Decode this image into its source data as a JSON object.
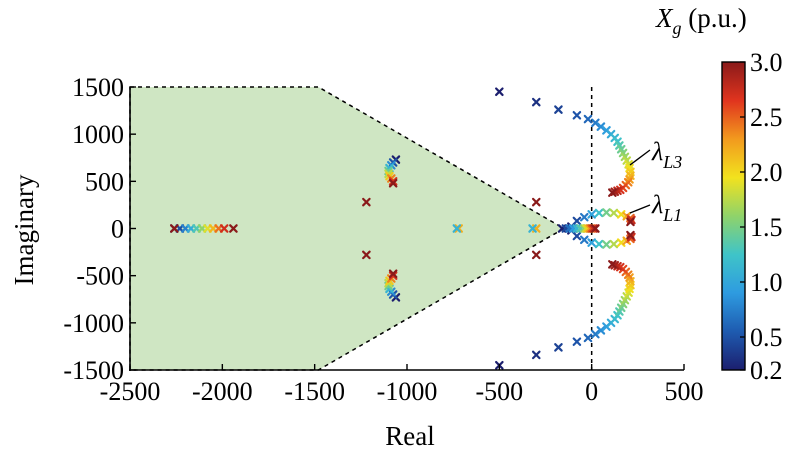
{
  "chart_data": {
    "type": "scatter",
    "xlabel": "Real",
    "ylabel": "Imaginary",
    "xlim": [
      -2500,
      500
    ],
    "ylim": [
      -1500,
      1500
    ],
    "x_ticks": [
      "-2500",
      "-2000",
      "-1500",
      "-1000",
      "-500",
      "0",
      "500"
    ],
    "y_ticks": [
      "1500",
      "1000",
      "500",
      "0",
      "-500",
      "-1000",
      "-1500"
    ],
    "grid": false,
    "marker": "x",
    "color_variable": "X_g",
    "colorbar": {
      "title_symbol": "X",
      "title_subscript": "g",
      "title_unit": " (p.u.)",
      "range": [
        0.2,
        3.0
      ],
      "ticks": [
        "3.0",
        "2.5",
        "2.0",
        "1.5",
        "1.0",
        "0.5",
        "0.2"
      ],
      "colormap": [
        "#1c1f6e",
        "#1e5bb0",
        "#2e9be0",
        "#3fc4c8",
        "#8fd36a",
        "#f2e21e",
        "#f29a1e",
        "#e0341e",
        "#8a1a1a"
      ]
    },
    "shaded_region": {
      "fill": "#cfe6c3",
      "boundary": "dashed",
      "vertices": [
        [
          -2500,
          1500
        ],
        [
          -1480,
          1500
        ],
        [
          -150,
          0
        ],
        [
          -1480,
          -1500
        ],
        [
          -2500,
          -1500
        ]
      ]
    },
    "vertical_reference_line": {
      "x": 0,
      "style": "dashed"
    },
    "annotations": [
      {
        "symbol": "λ",
        "subscript": "L3"
      },
      {
        "symbol": "λ",
        "subscript": "L1"
      }
    ],
    "series": [
      {
        "kind": "path",
        "xg_range": [
          0.2,
          3.0
        ],
        "points": [
          [
            -2260,
            0
          ],
          [
            -2230,
            0
          ],
          [
            -2200,
            0
          ],
          [
            -2170,
            0
          ],
          [
            -2140,
            0
          ],
          [
            -2110,
            0
          ],
          [
            -2080,
            0
          ],
          [
            -2050,
            0
          ],
          [
            -2020,
            0
          ],
          [
            -1990,
            0
          ],
          [
            -1940,
            0
          ]
        ]
      },
      {
        "kind": "path",
        "xg_range": [
          0.2,
          3.0
        ],
        "points": [
          [
            -1060,
            730
          ],
          [
            -1075,
            700
          ],
          [
            -1085,
            670
          ],
          [
            -1095,
            640
          ],
          [
            -1100,
            610
          ],
          [
            -1100,
            580
          ],
          [
            -1095,
            555
          ],
          [
            -1085,
            530
          ],
          [
            -1075,
            500
          ],
          [
            -1075,
            480
          ]
        ]
      },
      {
        "kind": "path",
        "xg_range": [
          0.2,
          3.0
        ],
        "points": [
          [
            -1060,
            -730
          ],
          [
            -1075,
            -700
          ],
          [
            -1085,
            -670
          ],
          [
            -1095,
            -640
          ],
          [
            -1100,
            -610
          ],
          [
            -1100,
            -580
          ],
          [
            -1095,
            -555
          ],
          [
            -1085,
            -530
          ],
          [
            -1075,
            -500
          ],
          [
            -1075,
            -480
          ]
        ]
      },
      {
        "kind": "points",
        "xg": 3.0,
        "points": [
          [
            -1220,
            280
          ],
          [
            -1220,
            -280
          ],
          [
            -300,
            280
          ],
          [
            -300,
            -280
          ],
          [
            -2260,
            0
          ]
        ]
      },
      {
        "kind": "points",
        "xg": 2.2,
        "points": [
          [
            -720,
            0
          ],
          [
            -300,
            0
          ],
          [
            -100,
            0
          ]
        ]
      },
      {
        "kind": "points",
        "xg": 1.1,
        "points": [
          [
            -730,
            0
          ],
          [
            -320,
            0
          ],
          [
            -110,
            0
          ]
        ]
      },
      {
        "kind": "path",
        "name": "λL3",
        "xg_range": [
          0.2,
          3.0
        ],
        "points": [
          [
            -500,
            1450
          ],
          [
            -300,
            1340
          ],
          [
            -180,
            1260
          ],
          [
            -80,
            1200
          ],
          [
            -20,
            1160
          ],
          [
            20,
            1120
          ],
          [
            50,
            1080
          ],
          [
            80,
            1040
          ],
          [
            105,
            1000
          ],
          [
            125,
            960
          ],
          [
            140,
            920
          ],
          [
            150,
            880
          ],
          [
            160,
            840
          ],
          [
            170,
            800
          ],
          [
            180,
            760
          ],
          [
            190,
            720
          ],
          [
            200,
            680
          ],
          [
            205,
            640
          ],
          [
            210,
            600
          ],
          [
            210,
            560
          ],
          [
            205,
            520
          ],
          [
            198,
            490
          ],
          [
            185,
            460
          ],
          [
            170,
            430
          ],
          [
            155,
            410
          ],
          [
            140,
            400
          ],
          [
            125,
            390
          ],
          [
            112,
            380
          ]
        ]
      },
      {
        "kind": "path",
        "xg_range": [
          0.2,
          3.0
        ],
        "points": [
          [
            -500,
            -1450
          ],
          [
            -300,
            -1340
          ],
          [
            -180,
            -1260
          ],
          [
            -80,
            -1200
          ],
          [
            -20,
            -1160
          ],
          [
            20,
            -1120
          ],
          [
            50,
            -1080
          ],
          [
            80,
            -1040
          ],
          [
            105,
            -1000
          ],
          [
            125,
            -960
          ],
          [
            140,
            -920
          ],
          [
            150,
            -880
          ],
          [
            160,
            -840
          ],
          [
            170,
            -800
          ],
          [
            180,
            -760
          ],
          [
            190,
            -720
          ],
          [
            200,
            -680
          ],
          [
            205,
            -640
          ],
          [
            210,
            -600
          ],
          [
            210,
            -560
          ],
          [
            205,
            -520
          ],
          [
            198,
            -490
          ],
          [
            185,
            -460
          ],
          [
            170,
            -430
          ],
          [
            155,
            -410
          ],
          [
            140,
            -400
          ],
          [
            125,
            -390
          ],
          [
            112,
            -380
          ]
        ]
      },
      {
        "kind": "path",
        "name": "λL1",
        "xg_range": [
          0.2,
          3.0
        ],
        "points": [
          [
            -110,
            20
          ],
          [
            -80,
            80
          ],
          [
            -40,
            120
          ],
          [
            0,
            150
          ],
          [
            40,
            165
          ],
          [
            80,
            170
          ],
          [
            120,
            165
          ],
          [
            160,
            150
          ],
          [
            190,
            130
          ],
          [
            210,
            110
          ],
          [
            215,
            90
          ],
          [
            210,
            70
          ]
        ]
      },
      {
        "kind": "path",
        "xg_range": [
          0.2,
          3.0
        ],
        "points": [
          [
            -110,
            -20
          ],
          [
            -80,
            -80
          ],
          [
            -40,
            -120
          ],
          [
            0,
            -150
          ],
          [
            40,
            -165
          ],
          [
            80,
            -170
          ],
          [
            120,
            -165
          ],
          [
            160,
            -150
          ],
          [
            190,
            -130
          ],
          [
            210,
            -110
          ],
          [
            215,
            -90
          ],
          [
            210,
            -70
          ]
        ]
      },
      {
        "kind": "path",
        "xg_range": [
          0.2,
          3.0
        ],
        "points": [
          [
            -160,
            0
          ],
          [
            -140,
            0
          ],
          [
            -120,
            0
          ],
          [
            -100,
            0
          ],
          [
            -80,
            0
          ],
          [
            -60,
            0
          ],
          [
            -40,
            0
          ],
          [
            -30,
            0
          ],
          [
            -20,
            0
          ],
          [
            -10,
            0
          ],
          [
            0,
            0
          ],
          [
            10,
            0
          ],
          [
            20,
            0
          ]
        ]
      }
    ]
  }
}
